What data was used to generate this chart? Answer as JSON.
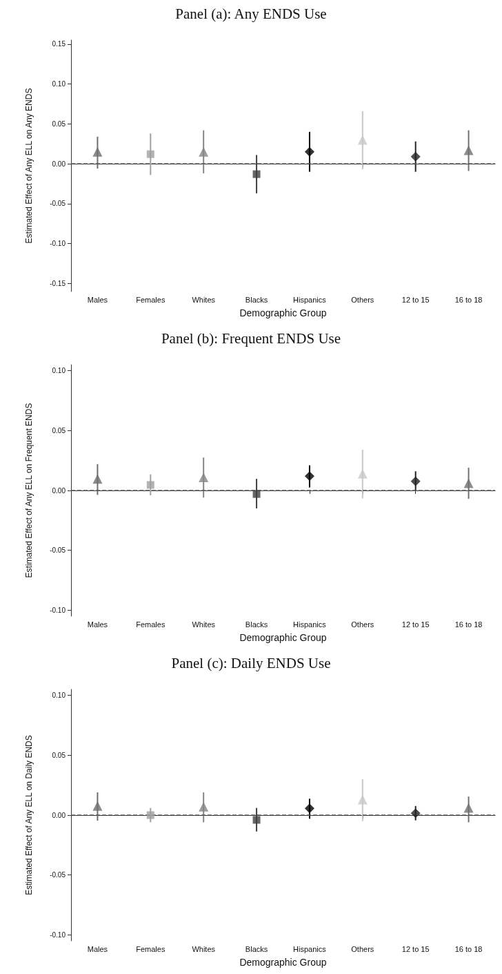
{
  "chart_data": [
    {
      "type": "scatter",
      "title": "Panel (a): Any ENDS Use",
      "xlabel": "Demographic Group",
      "ylabel": "Estimated Effect of Any ELL on Any ENDS",
      "categories": [
        "Males",
        "Females",
        "Whites",
        "Blacks",
        "Hispanics",
        "Others",
        "12 to 15",
        "16 to 18"
      ],
      "ylim": [
        -0.16,
        0.155
      ],
      "yticks": [
        {
          "value": -0.15,
          "label": "-0.15"
        },
        {
          "value": -0.1,
          "label": "-0.10"
        },
        {
          "value": -0.05,
          "label": "-0.05"
        },
        {
          "value": 0,
          "label": "0.00"
        },
        {
          "value": 0.05,
          "label": "0.05"
        },
        {
          "value": 0.1,
          "label": "0.10"
        },
        {
          "value": 0.15,
          "label": "0.15"
        }
      ],
      "grid": false,
      "ref_lines": [
        {
          "axis": "y",
          "value": 0,
          "color": "#555555",
          "line_style": "dashed"
        }
      ],
      "series": [
        {
          "marker": "triangle",
          "values": [
            0.015,
            null,
            0.015,
            null,
            null,
            0.03,
            null,
            0.017
          ],
          "colors": [
            "#6e6e6e",
            null,
            "#858585",
            null,
            null,
            "#c8c8c8",
            null,
            "#707070"
          ],
          "errors": [
            [
              -0.006,
              0.034
            ],
            null,
            [
              -0.012,
              0.042
            ],
            null,
            null,
            [
              -0.007,
              0.066
            ],
            null,
            [
              -0.009,
              0.042
            ]
          ]
        },
        {
          "marker": "square",
          "values": [
            null,
            0.012,
            null,
            -0.013,
            null,
            null,
            null,
            null
          ],
          "colors": [
            null,
            "#a0a0a0",
            null,
            "#404040",
            null,
            null,
            null,
            null
          ],
          "errors": [
            null,
            [
              -0.014,
              0.038
            ],
            null,
            [
              -0.037,
              0.011
            ],
            null,
            null,
            null,
            null
          ]
        },
        {
          "marker": "diamond",
          "values": [
            null,
            null,
            null,
            null,
            0.015,
            null,
            0.009,
            null
          ],
          "colors": [
            null,
            null,
            null,
            null,
            "#000000",
            null,
            "#222222",
            null
          ],
          "errors": [
            null,
            null,
            null,
            null,
            [
              -0.01,
              0.04
            ],
            null,
            [
              -0.01,
              0.028
            ],
            null
          ]
        }
      ]
    },
    {
      "type": "scatter",
      "title": "Panel (b): Frequent ENDS Use",
      "xlabel": "Demographic Group",
      "ylabel": "Estimated Effect of Any ELL on Frequent ENDS",
      "categories": [
        "Males",
        "Females",
        "Whites",
        "Blacks",
        "Hispanics",
        "Others",
        "12 to 15",
        "16 to 18"
      ],
      "ylim": [
        -0.105,
        0.105
      ],
      "yticks": [
        {
          "value": -0.1,
          "label": "-0.10"
        },
        {
          "value": -0.05,
          "label": "-0.05"
        },
        {
          "value": 0,
          "label": "0.00"
        },
        {
          "value": 0.05,
          "label": "0.05"
        },
        {
          "value": 0.1,
          "label": "0.10"
        }
      ],
      "grid": false,
      "ref_lines": [
        {
          "axis": "y",
          "value": 0,
          "color": "#555555",
          "line_style": "dashed"
        }
      ],
      "series": [
        {
          "marker": "triangle",
          "values": [
            0.0097,
            null,
            0.011,
            null,
            null,
            0.014,
            null,
            0.006
          ],
          "colors": [
            "#6e6e6e",
            null,
            "#858585",
            null,
            null,
            "#c8c8c8",
            null,
            "#707070"
          ],
          "errors": [
            [
              -0.0037,
              0.022
            ],
            null,
            [
              -0.006,
              0.0275
            ],
            null,
            null,
            [
              -0.0067,
              0.034
            ],
            null,
            [
              -0.007,
              0.019
            ]
          ]
        },
        {
          "marker": "square",
          "values": [
            null,
            0.0046,
            null,
            -0.003,
            null,
            null,
            null,
            null
          ],
          "colors": [
            null,
            "#a0a0a0",
            null,
            "#404040",
            null,
            null,
            null,
            null
          ],
          "errors": [
            null,
            [
              -0.004,
              0.0134
            ],
            null,
            [
              -0.015,
              0.0097
            ],
            null,
            null,
            null,
            null
          ]
        },
        {
          "marker": "diamond",
          "values": [
            null,
            null,
            null,
            null,
            0.012,
            null,
            0.0076,
            null
          ],
          "colors": [
            null,
            null,
            null,
            null,
            "#000000",
            null,
            "#222222",
            null
          ],
          "errors": [
            null,
            null,
            null,
            null,
            [
              0.0025,
              0.021
            ],
            null,
            [
              -0.0005,
              0.016
            ],
            null
          ]
        }
      ]
    },
    {
      "type": "scatter",
      "title": "Panel (c): Daily ENDS Use",
      "xlabel": "Demographic Group",
      "ylabel": "Estimated Effect of Any ELL on Daily ENDS",
      "categories": [
        "Males",
        "Females",
        "Whites",
        "Blacks",
        "Hispanics",
        "Others",
        "12 to 15",
        "16 to 18"
      ],
      "ylim": [
        -0.105,
        0.105
      ],
      "yticks": [
        {
          "value": -0.1,
          "label": "-0.10"
        },
        {
          "value": -0.05,
          "label": "-0.05"
        },
        {
          "value": 0,
          "label": "0.00"
        },
        {
          "value": 0.05,
          "label": "0.05"
        },
        {
          "value": 0.1,
          "label": "0.10"
        }
      ],
      "grid": false,
      "ref_lines": [
        {
          "axis": "y",
          "value": 0,
          "color": "#555555",
          "line_style": "dashed"
        }
      ],
      "series": [
        {
          "marker": "triangle",
          "values": [
            0.0076,
            null,
            0.007,
            null,
            null,
            0.013,
            null,
            0.006
          ],
          "colors": [
            "#6e6e6e",
            null,
            "#858585",
            null,
            null,
            "#c8c8c8",
            null,
            "#707070"
          ],
          "errors": [
            [
              -0.0046,
              0.019
            ],
            null,
            [
              -0.006,
              0.019
            ],
            null,
            null,
            [
              -0.005,
              0.03
            ],
            null,
            [
              -0.006,
              0.0155
            ]
          ]
        },
        {
          "marker": "square",
          "values": [
            null,
            0,
            null,
            -0.004,
            null,
            null,
            null,
            null
          ],
          "colors": [
            null,
            "#a0a0a0",
            null,
            "#404040",
            null,
            null,
            null,
            null
          ],
          "errors": [
            null,
            [
              -0.006,
              0.006
            ],
            null,
            [
              -0.0137,
              0.006
            ],
            null,
            null,
            null,
            null
          ]
        },
        {
          "marker": "diamond",
          "values": [
            null,
            null,
            null,
            null,
            0.0056,
            null,
            0.0016,
            null
          ],
          "colors": [
            null,
            null,
            null,
            null,
            "#000000",
            null,
            "#222222",
            null
          ],
          "errors": [
            null,
            null,
            null,
            null,
            [
              -0.003,
              0.0137
            ],
            null,
            [
              -0.0044,
              0.0076
            ],
            null
          ]
        }
      ]
    }
  ]
}
